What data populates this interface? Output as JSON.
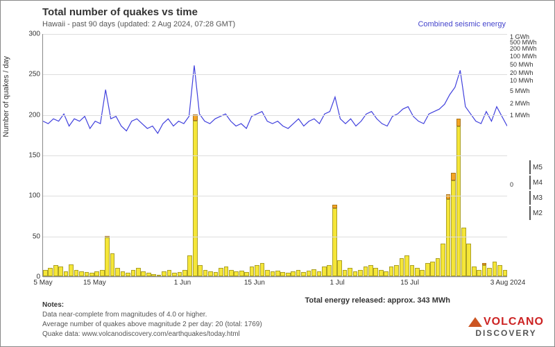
{
  "title": "Total number of quakes vs time",
  "subtitle": "Hawaii - past 90 days (updated: 2 Aug 2024, 07:28 GMT)",
  "legend_line": "Combined seismic energy",
  "y_axis_left": {
    "label": "Number of quakes / day",
    "min": 0,
    "max": 300,
    "step": 50,
    "ticks": [
      0,
      50,
      100,
      150,
      200,
      250,
      300
    ]
  },
  "y_axis_right": {
    "ticks": [
      {
        "pos": 0.62,
        "label": "0"
      },
      {
        "pos": 0.335,
        "label": "1 MWh"
      },
      {
        "pos": 0.285,
        "label": "2 MWh"
      },
      {
        "pos": 0.235,
        "label": "5 MWh"
      },
      {
        "pos": 0.19,
        "label": "10 MWh"
      },
      {
        "pos": 0.16,
        "label": "20 MWh"
      },
      {
        "pos": 0.125,
        "label": "50 MWh"
      },
      {
        "pos": 0.09,
        "label": "100 MWh"
      },
      {
        "pos": 0.06,
        "label": "200 MWh"
      },
      {
        "pos": 0.035,
        "label": "500 MWh"
      },
      {
        "pos": 0.01,
        "label": "1 GWh"
      }
    ]
  },
  "x_axis": {
    "ticks": [
      {
        "pos": 0.0,
        "label": "5 May"
      },
      {
        "pos": 0.111,
        "label": "15 May"
      },
      {
        "pos": 0.3,
        "label": "1 Jun"
      },
      {
        "pos": 0.455,
        "label": "15 Jun"
      },
      {
        "pos": 0.633,
        "label": "1 Jul"
      },
      {
        "pos": 0.789,
        "label": "15 Jul"
      },
      {
        "pos": 1.0,
        "label": "3 Aug 2024"
      }
    ]
  },
  "colors": {
    "M2": "#f5e638",
    "M3": "#f5a623",
    "M4": "#e63030",
    "M5": "#8a3020",
    "line": "#4040dd",
    "grid": "#dddddd",
    "border": "#888888",
    "bg": "#ffffff"
  },
  "mag_legend": [
    {
      "label": "M5",
      "color": "#8a3020"
    },
    {
      "label": "M4",
      "color": "#e63030"
    },
    {
      "label": "M3",
      "color": "#f5a623"
    },
    {
      "label": "M2",
      "color": "#f5e638"
    }
  ],
  "bars": [
    {
      "m2": 8
    },
    {
      "m2": 10
    },
    {
      "m2": 14
    },
    {
      "m2": 12
    },
    {
      "m2": 6
    },
    {
      "m2": 15
    },
    {
      "m2": 8
    },
    {
      "m2": 6
    },
    {
      "m2": 5
    },
    {
      "m2": 4
    },
    {
      "m2": 6
    },
    {
      "m2": 8
    },
    {
      "m2": 48,
      "m3": 2
    },
    {
      "m2": 28
    },
    {
      "m2": 10
    },
    {
      "m2": 6
    },
    {
      "m2": 4
    },
    {
      "m2": 8
    },
    {
      "m2": 10
    },
    {
      "m2": 6
    },
    {
      "m2": 4
    },
    {
      "m2": 3
    },
    {
      "m2": 2
    },
    {
      "m2": 6
    },
    {
      "m2": 8
    },
    {
      "m2": 4
    },
    {
      "m2": 5
    },
    {
      "m2": 8
    },
    {
      "m2": 26
    },
    {
      "m2": 192,
      "m3": 8
    },
    {
      "m2": 14
    },
    {
      "m2": 8
    },
    {
      "m2": 6
    },
    {
      "m2": 5
    },
    {
      "m2": 10
    },
    {
      "m2": 12
    },
    {
      "m2": 8
    },
    {
      "m2": 6
    },
    {
      "m2": 7
    },
    {
      "m2": 5
    },
    {
      "m2": 12
    },
    {
      "m2": 14
    },
    {
      "m2": 16
    },
    {
      "m2": 8
    },
    {
      "m2": 6
    },
    {
      "m2": 7
    },
    {
      "m2": 5
    },
    {
      "m2": 4
    },
    {
      "m2": 6
    },
    {
      "m2": 8
    },
    {
      "m2": 5
    },
    {
      "m2": 7
    },
    {
      "m2": 9
    },
    {
      "m2": 6
    },
    {
      "m2": 12
    },
    {
      "m2": 14
    },
    {
      "m2": 84,
      "m3": 4
    },
    {
      "m2": 20
    },
    {
      "m2": 8
    },
    {
      "m2": 10
    },
    {
      "m2": 6
    },
    {
      "m2": 8
    },
    {
      "m2": 12
    },
    {
      "m2": 14
    },
    {
      "m2": 10
    },
    {
      "m2": 8
    },
    {
      "m2": 6
    },
    {
      "m2": 12
    },
    {
      "m2": 14
    },
    {
      "m2": 22
    },
    {
      "m2": 26
    },
    {
      "m2": 14
    },
    {
      "m2": 10
    },
    {
      "m2": 8
    },
    {
      "m2": 16
    },
    {
      "m2": 18
    },
    {
      "m2": 22
    },
    {
      "m2": 40
    },
    {
      "m2": 95,
      "m3": 6
    },
    {
      "m2": 118,
      "m3": 10
    },
    {
      "m2": 185,
      "m3": 10
    },
    {
      "m2": 60
    },
    {
      "m2": 40
    },
    {
      "m2": 12
    },
    {
      "m2": 8
    },
    {
      "m2": 14,
      "m3": 2
    },
    {
      "m2": 10
    },
    {
      "m2": 18
    },
    {
      "m2": 14
    },
    {
      "m2": 8
    }
  ],
  "energy_line": [
    0.36,
    0.37,
    0.35,
    0.36,
    0.33,
    0.38,
    0.35,
    0.36,
    0.34,
    0.39,
    0.36,
    0.37,
    0.23,
    0.35,
    0.34,
    0.38,
    0.4,
    0.36,
    0.35,
    0.37,
    0.39,
    0.38,
    0.41,
    0.37,
    0.35,
    0.38,
    0.36,
    0.37,
    0.34,
    0.13,
    0.33,
    0.36,
    0.37,
    0.35,
    0.34,
    0.33,
    0.36,
    0.38,
    0.37,
    0.39,
    0.34,
    0.33,
    0.32,
    0.36,
    0.37,
    0.36,
    0.38,
    0.39,
    0.37,
    0.35,
    0.38,
    0.36,
    0.35,
    0.37,
    0.33,
    0.32,
    0.26,
    0.35,
    0.37,
    0.35,
    0.38,
    0.36,
    0.33,
    0.32,
    0.35,
    0.37,
    0.38,
    0.34,
    0.33,
    0.31,
    0.3,
    0.34,
    0.36,
    0.37,
    0.33,
    0.32,
    0.31,
    0.29,
    0.25,
    0.22,
    0.15,
    0.3,
    0.33,
    0.36,
    0.37,
    0.32,
    0.36,
    0.3,
    0.34,
    0.38
  ],
  "notes": {
    "title": "Notes:",
    "line1": "Data near-complete from magnitudes of 4.0 or higher.",
    "line2": "Average number of quakes above magnitude 2 per day: 20 (total: 1769)",
    "line3": "Quake data: www.volcanodiscovery.com/earthquakes/today.html"
  },
  "energy_total": "Total energy released: approx. 343 MWh",
  "logo": {
    "text1": "VOLCANO",
    "text2": "DISCOVERY"
  }
}
